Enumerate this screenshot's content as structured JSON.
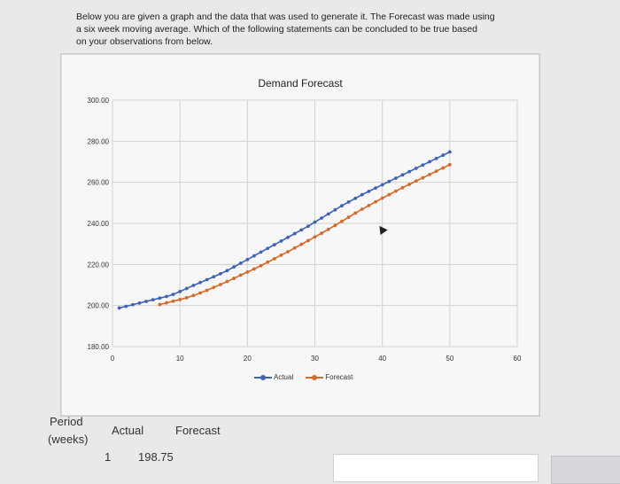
{
  "question": {
    "line1": "Below you are given a graph and the data that was used to generate it. The Forecast was made using",
    "line2": "a six week moving average. Which of the following statements can be concluded to be true based",
    "line3": "on your observations from below."
  },
  "colors": {
    "actual": "#3f62b8",
    "forecast": "#d4692a",
    "grid": "#d2d2d2"
  },
  "chart_data": {
    "type": "line",
    "title": "Demand Forecast",
    "xlim": [
      0,
      60
    ],
    "ylim": [
      180,
      300
    ],
    "xticks": [
      "0",
      "10",
      "20",
      "30",
      "40",
      "50",
      "60"
    ],
    "yticks": [
      "180.00",
      "200.00",
      "220.00",
      "240.00",
      "260.00",
      "280.00",
      "300.00"
    ],
    "grid": true,
    "legend_position": "bottom",
    "series": [
      {
        "name": "Actual",
        "x": [
          1,
          2,
          3,
          4,
          5,
          6,
          7,
          8,
          9,
          10,
          11,
          12,
          13,
          14,
          15,
          16,
          17,
          18,
          19,
          20,
          21,
          22,
          23,
          24,
          25,
          26,
          27,
          28,
          29,
          30,
          31,
          32,
          33,
          34,
          35,
          36,
          37,
          38,
          39,
          40,
          41,
          42,
          43,
          44,
          45,
          46,
          47,
          48,
          49,
          50
        ],
        "values": [
          198.8,
          199.6,
          200.4,
          201.2,
          202.0,
          202.8,
          203.6,
          204.4,
          205.4,
          206.8,
          208.3,
          209.8,
          211.2,
          212.6,
          214.0,
          215.5,
          217.0,
          218.8,
          220.6,
          222.4,
          224.2,
          226.0,
          227.8,
          229.6,
          231.4,
          233.2,
          235.0,
          236.8,
          238.6,
          240.6,
          242.6,
          244.6,
          246.6,
          248.6,
          250.4,
          252.2,
          254.0,
          255.6,
          257.2,
          258.8,
          260.4,
          262.0,
          263.6,
          265.2,
          266.8,
          268.4,
          270.0,
          271.6,
          273.2,
          274.8
        ]
      },
      {
        "name": "Forecast",
        "x": [
          7,
          8,
          9,
          10,
          11,
          12,
          13,
          14,
          15,
          16,
          17,
          18,
          19,
          20,
          21,
          22,
          23,
          24,
          25,
          26,
          27,
          28,
          29,
          30,
          31,
          32,
          33,
          34,
          35,
          36,
          37,
          38,
          39,
          40,
          41,
          42,
          43,
          44,
          45,
          46,
          47,
          48,
          49,
          50
        ],
        "values": [
          200.5,
          201.3,
          202.1,
          202.9,
          203.8,
          204.9,
          206.1,
          207.4,
          208.8,
          210.2,
          211.7,
          213.2,
          214.8,
          216.3,
          217.8,
          219.4,
          221.1,
          222.8,
          224.5,
          226.2,
          228.0,
          229.8,
          231.6,
          233.4,
          235.2,
          237.1,
          239.0,
          241.0,
          243.0,
          245.0,
          246.9,
          248.7,
          250.5,
          252.3,
          254.0,
          255.7,
          257.4,
          259.0,
          260.6,
          262.2,
          263.8,
          265.4,
          267.0,
          268.6
        ]
      }
    ]
  },
  "table": {
    "col_period_line1": "Period",
    "col_period_line2": "(weeks)",
    "col_actual": "Actual",
    "col_forecast": "Forecast",
    "row1_period": "1",
    "row1_actual": "198.75"
  }
}
